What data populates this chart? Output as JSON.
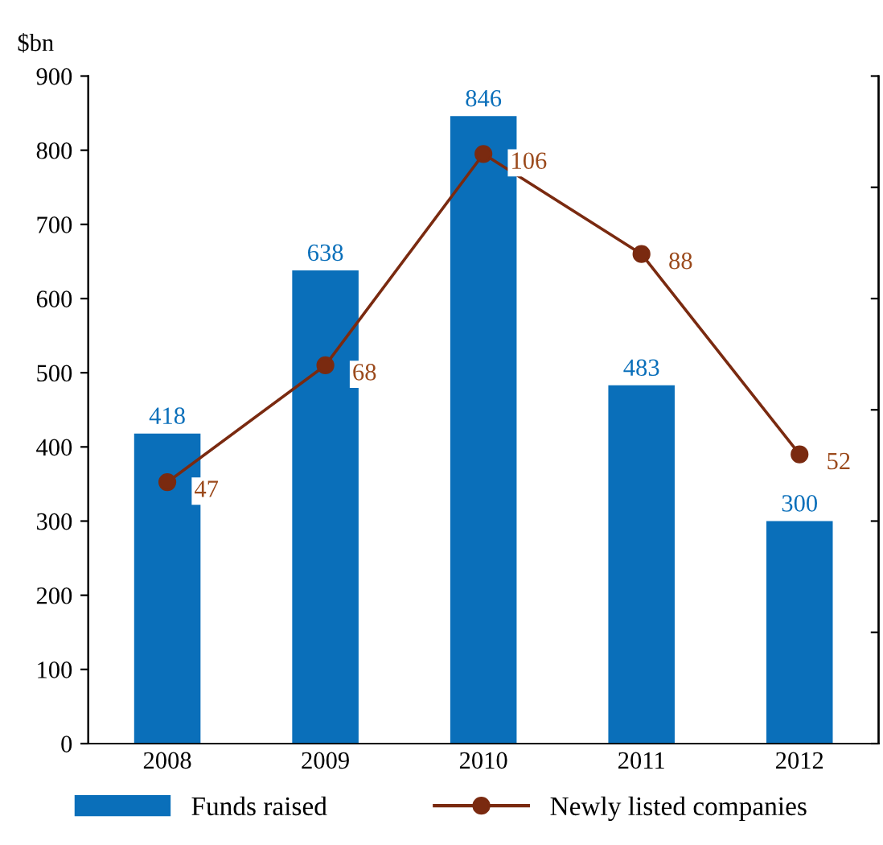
{
  "chart_data": {
    "type": "bar",
    "ylabel": "$bn",
    "categories": [
      "2008",
      "2009",
      "2010",
      "2011",
      "2012"
    ],
    "series": [
      {
        "name": "Funds raised",
        "color": "#0a6fba",
        "values": [
          418,
          638,
          846,
          483,
          300
        ]
      },
      {
        "name": "Newly listed companies",
        "type": "line",
        "axis": "y2",
        "color": "#7a2a10",
        "marker": "circle",
        "values": [
          47,
          68,
          106,
          88,
          52
        ]
      }
    ],
    "ylim": [
      0,
      900
    ],
    "yticks": [
      0,
      100,
      200,
      300,
      400,
      500,
      600,
      700,
      800,
      900
    ],
    "y2lim": [
      0,
      120
    ],
    "y2ticks": [
      {
        "value": 0,
        "label": null
      },
      {
        "value": 20,
        "label": null
      },
      {
        "value": 40,
        "label": null
      },
      {
        "value": 60,
        "label": null
      },
      {
        "value": 80,
        "label": null
      },
      {
        "value": 100,
        "label": null
      },
      {
        "value": 120,
        "label": null
      }
    ],
    "data_labels": true,
    "grid": false,
    "legend": "bottom"
  }
}
